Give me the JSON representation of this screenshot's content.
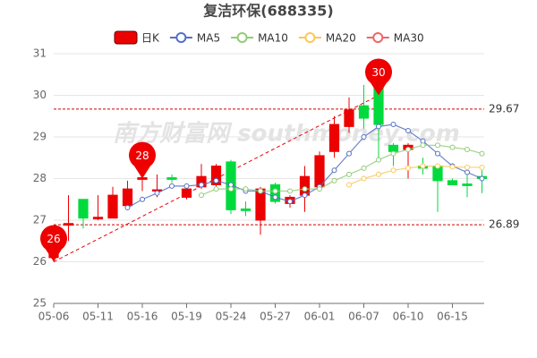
{
  "chart_data": {
    "type": "candlestick",
    "title": "复洁环保(688335)",
    "categories": [
      "05-06",
      null,
      null,
      "05-11",
      null,
      null,
      "05-16",
      null,
      null,
      "05-19",
      null,
      null,
      "05-24",
      null,
      null,
      "05-27",
      null,
      null,
      "06-01",
      null,
      null,
      "06-07",
      null,
      null,
      "06-10",
      null,
      null,
      "06-15",
      null,
      null
    ],
    "candles": {
      "name": "日K",
      "up_color": "#ec0000",
      "down_color": "#00da3c",
      "open": [
        26.1,
        26.88,
        27.5,
        27.03,
        27.05,
        27.35,
        27.98,
        27.7,
        28.02,
        27.55,
        27.8,
        27.85,
        28.4,
        27.27,
        27.0,
        27.85,
        27.4,
        27.6,
        27.8,
        28.65,
        29.25,
        29.75,
        30.3,
        28.8,
        28.7,
        28.3,
        28.3,
        27.95,
        27.87,
        28.05
      ],
      "close": [
        26.2,
        26.92,
        27.05,
        27.07,
        27.6,
        27.75,
        28.02,
        27.73,
        27.98,
        27.75,
        28.05,
        28.3,
        27.25,
        27.23,
        27.75,
        27.45,
        27.55,
        28.05,
        28.55,
        29.3,
        29.65,
        29.45,
        29.3,
        28.65,
        28.8,
        28.25,
        27.95,
        27.85,
        27.83,
        28.0
      ],
      "high": [
        26.4,
        27.6,
        27.5,
        27.6,
        27.8,
        27.95,
        28.3,
        28.1,
        28.1,
        27.8,
        28.35,
        28.35,
        28.45,
        27.45,
        27.8,
        27.9,
        27.6,
        28.3,
        28.65,
        29.5,
        29.95,
        30.25,
        30.3,
        28.85,
        28.85,
        28.5,
        28.3,
        28.0,
        28.1,
        28.2
      ],
      "low": [
        26.0,
        26.5,
        26.8,
        27.0,
        27.05,
        27.3,
        27.7,
        27.55,
        27.9,
        27.5,
        27.75,
        27.8,
        27.15,
        27.1,
        26.65,
        27.4,
        27.3,
        27.2,
        27.7,
        28.5,
        29.1,
        29.2,
        28.4,
        28.3,
        28.0,
        28.1,
        27.2,
        27.85,
        27.55,
        27.65
      ]
    },
    "series": [
      {
        "name": "MA5",
        "color": "#5470c6",
        "values": [
          null,
          null,
          null,
          null,
          null,
          27.3,
          27.5,
          27.65,
          27.82,
          27.82,
          27.85,
          27.95,
          27.85,
          27.7,
          27.7,
          27.55,
          27.45,
          27.6,
          27.8,
          28.2,
          28.6,
          29.0,
          29.25,
          29.3,
          29.15,
          28.9,
          28.6,
          28.3,
          28.15,
          28.0
        ]
      },
      {
        "name": "MA10",
        "color": "#91cc75",
        "values": [
          null,
          null,
          null,
          null,
          null,
          null,
          null,
          null,
          null,
          null,
          27.6,
          27.75,
          27.75,
          27.75,
          27.7,
          27.7,
          27.7,
          27.75,
          27.75,
          27.95,
          28.1,
          28.25,
          28.45,
          28.6,
          28.7,
          28.8,
          28.8,
          28.75,
          28.7,
          28.6
        ]
      },
      {
        "name": "MA20",
        "color": "#fac858",
        "values": [
          null,
          null,
          null,
          null,
          null,
          null,
          null,
          null,
          null,
          null,
          null,
          null,
          null,
          null,
          null,
          null,
          null,
          null,
          null,
          null,
          27.85,
          28.0,
          28.1,
          28.2,
          28.25,
          28.3,
          28.3,
          28.28,
          28.27,
          28.27
        ]
      },
      {
        "name": "MA30",
        "color": "#ee6666",
        "values": [
          null,
          null,
          null,
          null,
          null,
          null,
          null,
          null,
          null,
          null,
          null,
          null,
          null,
          null,
          null,
          null,
          null,
          null,
          null,
          null,
          null,
          null,
          null,
          null,
          null,
          null,
          null,
          null,
          null,
          null
        ]
      }
    ],
    "annotations": [
      {
        "index": 0,
        "value": 26
      },
      {
        "index": 6,
        "value": 28
      },
      {
        "index": 22,
        "value": 30
      }
    ],
    "hlines": [
      {
        "value": 29.67
      },
      {
        "value": 26.89
      }
    ],
    "watermark": "南方财富网 southmoney.com",
    "ylim": [
      25,
      31
    ],
    "yticks": [
      25,
      26,
      27,
      28,
      29,
      30,
      31
    ],
    "grid": true
  }
}
